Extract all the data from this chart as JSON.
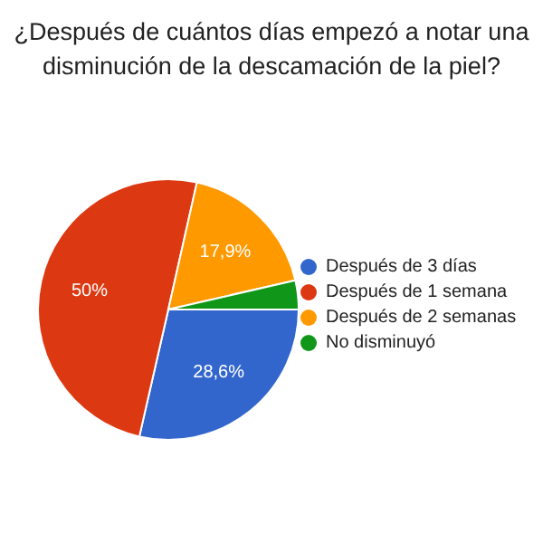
{
  "chart_data": {
    "type": "pie",
    "title": "¿Después de cuántos días empezó a notar una disminución de la descamación de la piel?",
    "categories": [
      "Después de 3 días",
      "Después de 1 semana",
      "Después de 2 semanas",
      "No disminuyó"
    ],
    "values": [
      28.6,
      50,
      17.9,
      3.6
    ],
    "colors": [
      "#3366cc",
      "#dc3912",
      "#ff9900",
      "#109618"
    ],
    "value_labels": [
      "28,6%",
      "50%",
      "17,9%",
      null
    ],
    "legend": "right"
  }
}
